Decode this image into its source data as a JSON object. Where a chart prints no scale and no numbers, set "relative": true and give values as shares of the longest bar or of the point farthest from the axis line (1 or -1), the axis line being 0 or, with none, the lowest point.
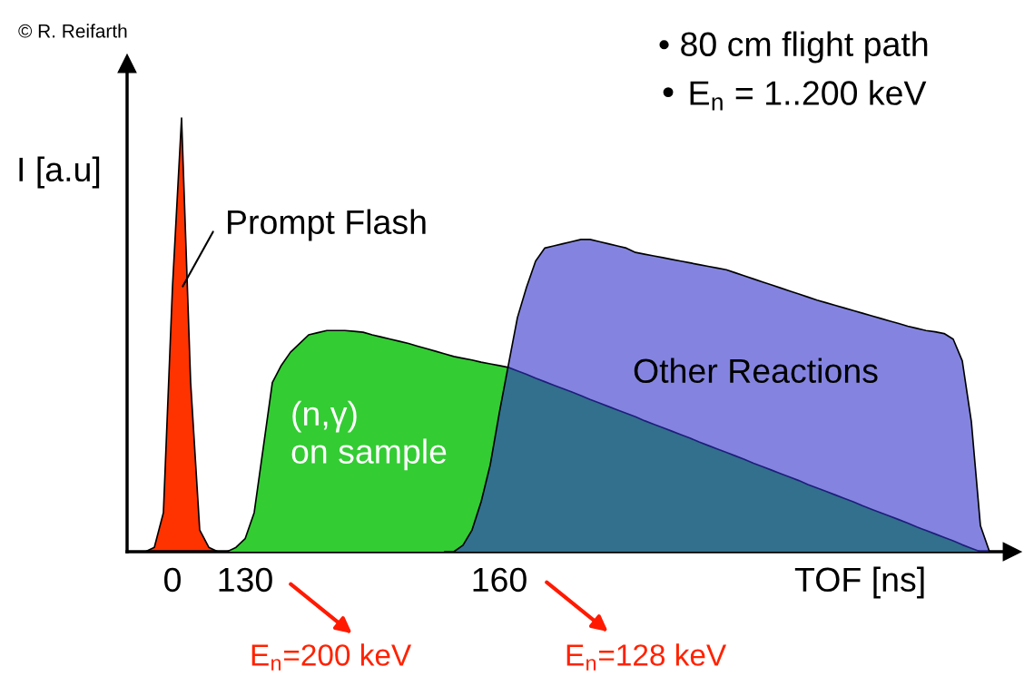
{
  "chart_data": {
    "type": "area",
    "relative": true,
    "xlabel": "TOF [ns]",
    "ylabel": "I [a.u]",
    "categories": [
      null,
      null,
      null,
      null,
      null,
      "0",
      null,
      null,
      null,
      null,
      null,
      null,
      null,
      "130",
      null,
      null,
      null,
      null,
      null,
      null,
      null,
      null,
      null,
      null,
      null,
      null,
      null,
      null,
      null,
      null,
      null,
      null,
      null,
      null,
      null,
      null,
      null,
      null,
      null,
      null,
      null,
      "160",
      null,
      null,
      null,
      null,
      null,
      null,
      null,
      null,
      null,
      null,
      null,
      null,
      null,
      null,
      null,
      null,
      null,
      null,
      null,
      null,
      null,
      null,
      null,
      null,
      null,
      null,
      null,
      null,
      null,
      null,
      null,
      null,
      null,
      null,
      null,
      null,
      null,
      null,
      null,
      null,
      null,
      null,
      null,
      null,
      null,
      null,
      null,
      null,
      null,
      null,
      null,
      null,
      null,
      null,
      null,
      null
    ],
    "series": [
      {
        "color": "#ff3300",
        "values": [
          null,
          null,
          0,
          0.01,
          0.09,
          0.61,
          1.0,
          0.39,
          0.05,
          0.01,
          0,
          null,
          null,
          null,
          null,
          null,
          null,
          null,
          null,
          null,
          null,
          null,
          null,
          null,
          null,
          null,
          null,
          null,
          null,
          null,
          null,
          null,
          null,
          null,
          null,
          null,
          null,
          null,
          null,
          null,
          null,
          null,
          null,
          null,
          null,
          null,
          null,
          null,
          null,
          null,
          null,
          null,
          null,
          null,
          null,
          null,
          null,
          null,
          null,
          null,
          null,
          null,
          null,
          null,
          null,
          null,
          null,
          null,
          null,
          null,
          null,
          null,
          null,
          null,
          null,
          null,
          null,
          null,
          null,
          null,
          null,
          null,
          null,
          null,
          null,
          null,
          null,
          null,
          null,
          null,
          null,
          null,
          null,
          null,
          null,
          null,
          null,
          null
        ]
      },
      {
        "color": "#33cc33",
        "values": [
          null,
          null,
          null,
          null,
          null,
          null,
          null,
          null,
          null,
          null,
          null,
          0,
          0.01,
          0.03,
          0.09,
          0.24,
          0.39,
          0.43,
          0.46,
          0.48,
          0.5,
          0.505,
          0.51,
          0.51,
          0.51,
          0.508,
          0.506,
          0.5,
          0.495,
          0.49,
          0.485,
          0.48,
          0.474,
          0.468,
          0.462,
          0.456,
          0.45,
          0.446,
          0.442,
          0.437,
          0.433,
          0.429,
          0.425,
          0.417,
          0.409,
          0.4,
          0.392,
          0.384,
          0.376,
          0.368,
          0.36,
          0.351,
          0.343,
          0.335,
          0.327,
          0.319,
          0.311,
          0.302,
          0.294,
          0.286,
          0.278,
          0.27,
          0.262,
          0.253,
          0.245,
          0.237,
          0.229,
          0.221,
          0.213,
          0.204,
          0.196,
          0.188,
          0.18,
          0.172,
          0.164,
          0.155,
          0.147,
          0.139,
          0.131,
          0.123,
          0.115,
          0.106,
          0.098,
          0.09,
          0.082,
          0.074,
          0.066,
          0.057,
          0.049,
          0.041,
          0.033,
          0.025,
          0.016,
          0.008,
          0,
          null,
          null,
          null
        ]
      },
      {
        "color": "#8484e0",
        "values": [
          null,
          null,
          null,
          null,
          null,
          null,
          null,
          null,
          null,
          null,
          null,
          null,
          null,
          null,
          null,
          null,
          null,
          null,
          null,
          null,
          null,
          null,
          null,
          null,
          null,
          null,
          null,
          null,
          null,
          null,
          null,
          null,
          null,
          null,
          null,
          0,
          0,
          0.015,
          0.05,
          0.115,
          0.2,
          0.32,
          0.43,
          0.54,
          0.61,
          0.67,
          0.7,
          0.705,
          0.71,
          0.715,
          0.72,
          0.72,
          0.715,
          0.71,
          0.705,
          0.7,
          0.69,
          0.686,
          0.682,
          0.678,
          0.674,
          0.67,
          0.666,
          0.662,
          0.658,
          0.654,
          0.65,
          0.643,
          0.636,
          0.629,
          0.622,
          0.615,
          0.608,
          0.601,
          0.594,
          0.587,
          0.58,
          0.574,
          0.568,
          0.562,
          0.556,
          0.55,
          0.544,
          0.538,
          0.532,
          0.526,
          0.52,
          0.515,
          0.51,
          0.507,
          0.503,
          0.49,
          0.44,
          0.3,
          0.06,
          0,
          null,
          null
        ]
      }
    ],
    "annotations": [
      "© R. Reifarth",
      "• 80 cm flight path",
      "• E$_{n}$ = 1..200 keV",
      "Prompt Flash",
      "(n,γ)\non sample",
      "Other Reactions",
      "E$_{n}$=200 keV",
      "E$_{n}$=128 keV"
    ]
  }
}
